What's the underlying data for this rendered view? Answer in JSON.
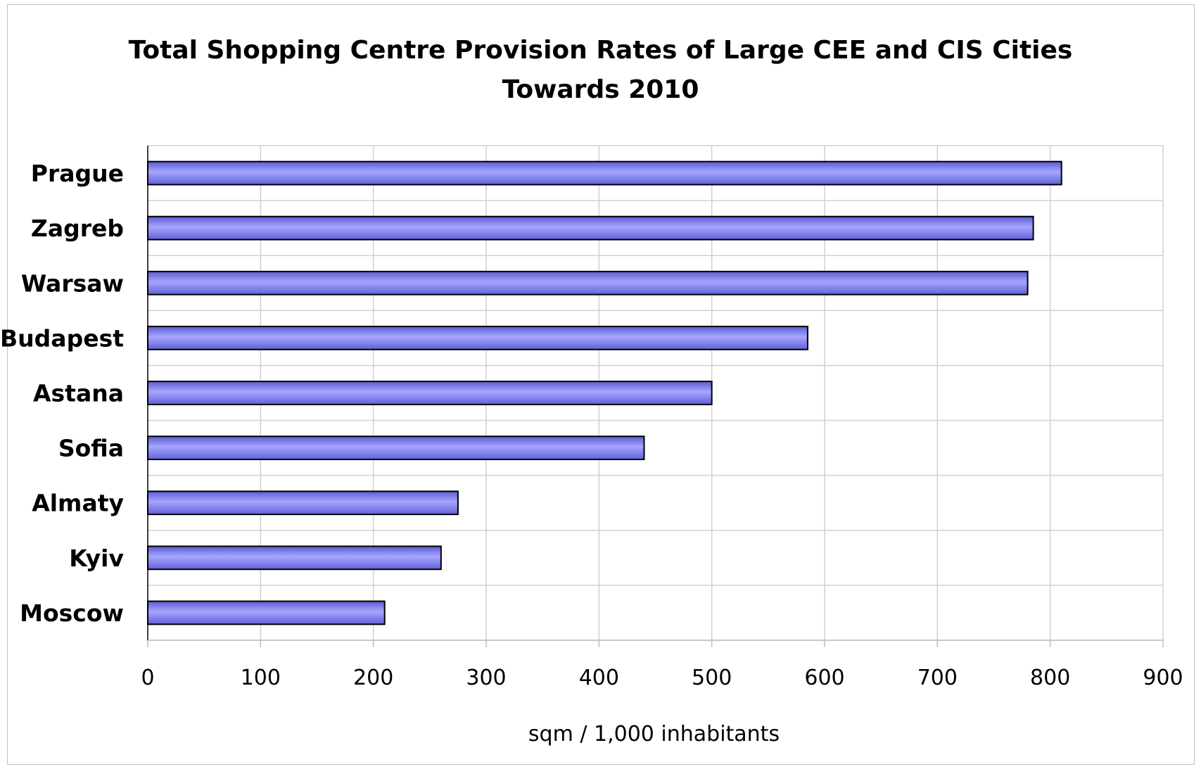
{
  "chart_data": {
    "type": "bar",
    "orientation": "horizontal",
    "title_lines": [
      "Total Shopping Centre Provision Rates of Large CEE and CIS Cities",
      "Towards 2010"
    ],
    "categories": [
      "Prague",
      "Zagreb",
      "Warsaw",
      "Budapest",
      "Astana",
      "Sofia",
      "Almaty",
      "Kyiv",
      "Moscow"
    ],
    "values": [
      810,
      785,
      780,
      585,
      500,
      440,
      275,
      260,
      210
    ],
    "xlabel": "sqm / 1,000 inhabitants",
    "ylabel": "",
    "xlim": [
      0,
      900
    ],
    "xticks": [
      "0",
      "100",
      "200",
      "300",
      "400",
      "500",
      "600",
      "700",
      "800",
      "900"
    ],
    "grid": true,
    "legend": "none",
    "bar_color": "#9999ff"
  }
}
